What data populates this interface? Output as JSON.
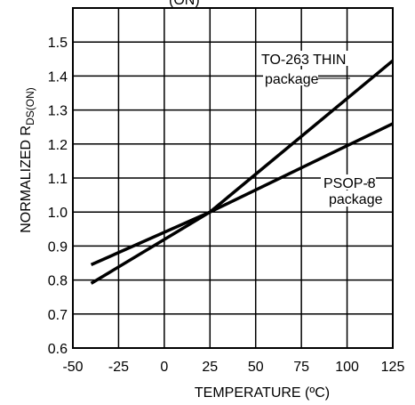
{
  "chart_data": {
    "type": "line",
    "title": "",
    "xlabel": "TEMPERATURE (ºC)",
    "ylabel_main": "NORMALIZED R",
    "ylabel_sub": "DS(ON)",
    "xlim": [
      -50,
      125
    ],
    "ylim": [
      0.6,
      1.6
    ],
    "xticks": [
      -50,
      -25,
      0,
      25,
      50,
      75,
      100,
      125
    ],
    "xtick_labels": [
      "-50",
      "-25",
      "0",
      "25",
      "50",
      "75",
      "100",
      "125"
    ],
    "yticks": [
      0.6,
      0.7,
      0.8,
      0.9,
      1.0,
      1.1,
      1.2,
      1.3,
      1.4,
      1.5
    ],
    "ytick_labels": [
      "0.6",
      "0.7",
      "0.8",
      "0.9",
      "1.0",
      "1.1",
      "1.2",
      "1.3",
      "1.4",
      "1.5"
    ],
    "grid": true,
    "series": [
      {
        "x": [
          -40,
          25,
          125
        ],
        "y": [
          0.79,
          1.0,
          1.445
        ]
      },
      {
        "x": [
          -40,
          25,
          125
        ],
        "y": [
          0.845,
          1.0,
          1.26
        ]
      }
    ],
    "annotations": [
      {
        "id": "to263_l1",
        "text": "TO-263 THIN"
      },
      {
        "id": "to263_l2",
        "text": "package"
      },
      {
        "id": "psop_l1",
        "text": "PSOP-8"
      },
      {
        "id": "psop_l2",
        "text": "package"
      }
    ],
    "top_fragment": "(ON)"
  }
}
